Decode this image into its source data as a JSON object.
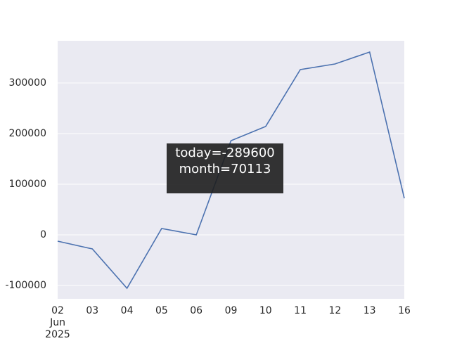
{
  "chart_data": {
    "type": "line",
    "categories": [
      "02 Jun 2025",
      "03",
      "04",
      "05",
      "06",
      "09",
      "10",
      "11",
      "12",
      "13",
      "16"
    ],
    "series": [
      {
        "color": "#4c72b0",
        "values": [
          -12500,
          -27800,
          -105600,
          12500,
          0,
          186000,
          214000,
          326400,
          337500,
          361100,
          72200
        ]
      }
    ],
    "ylim": [
      -126389,
      383333
    ],
    "yticks": [
      -100000,
      0,
      100000,
      200000,
      300000
    ],
    "grid": true,
    "tooltip": [
      "today=-289600",
      "month=70113"
    ]
  }
}
